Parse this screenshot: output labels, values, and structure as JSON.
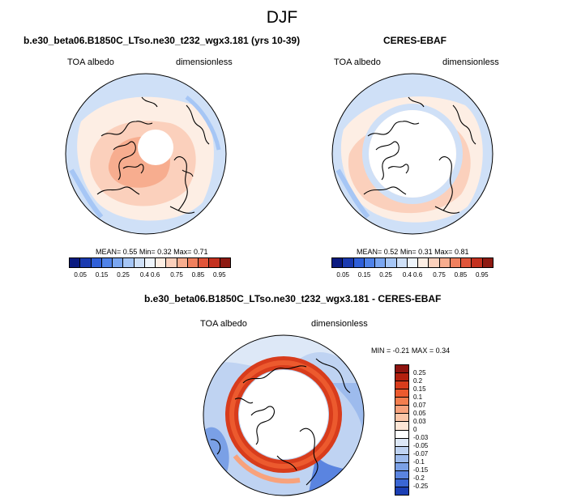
{
  "page_title": "DJF",
  "chart_data": [
    {
      "type": "heatmap",
      "projection": "north-polar-stereographic",
      "title": "b.e30_beta06.B1850C_LTso.ne30_t232_wgx3.181 (yrs 10-39)",
      "left_label": "TOA albedo",
      "right_label": "dimensionless",
      "stats": {
        "mean_label": "MEAN=",
        "mean": "0.55",
        "min_label": "Min=",
        "min": "0.32",
        "max_label": "Max=",
        "max": "0.71"
      },
      "colorbar": {
        "orientation": "horizontal",
        "tick_labels": [
          "0.05",
          "0.15",
          "0.25",
          "0.4",
          "0.6",
          "0.75",
          "0.85",
          "0.95"
        ],
        "colors": [
          "#0a1a80",
          "#1a3ab0",
          "#2f5fd8",
          "#4f82e8",
          "#7aa6f0",
          "#a6c6f5",
          "#cfe0f7",
          "#eef4fb",
          "#fdeee4",
          "#fbd0bc",
          "#f7ad8f",
          "#f0805e",
          "#e0553a",
          "#c4311f",
          "#8e1a12"
        ]
      }
    },
    {
      "type": "heatmap",
      "projection": "north-polar-stereographic",
      "title": "CERES-EBAF",
      "left_label": "TOA albedo",
      "right_label": "dimensionless",
      "stats": {
        "mean_label": "MEAN=",
        "mean": "0.52",
        "min_label": "Min=",
        "min": "0.31",
        "max_label": "Max=",
        "max": "0.81"
      },
      "colorbar": {
        "orientation": "horizontal",
        "tick_labels": [
          "0.05",
          "0.15",
          "0.25",
          "0.4",
          "0.6",
          "0.75",
          "0.85",
          "0.95"
        ],
        "colors": [
          "#0a1a80",
          "#1a3ab0",
          "#2f5fd8",
          "#4f82e8",
          "#7aa6f0",
          "#a6c6f5",
          "#cfe0f7",
          "#eef4fb",
          "#fdeee4",
          "#fbd0bc",
          "#f7ad8f",
          "#f0805e",
          "#e0553a",
          "#c4311f",
          "#8e1a12"
        ]
      }
    },
    {
      "type": "heatmap",
      "projection": "north-polar-stereographic",
      "title": "b.e30_beta06.B1850C_LTso.ne30_t232_wgx3.181 - CERES-EBAF",
      "left_label": "TOA albedo",
      "right_label": "dimensionless",
      "stats": {
        "min_label": "MIN =",
        "min": "-0.21",
        "max_label": "MAX =",
        "max": "0.34"
      },
      "colorbar": {
        "orientation": "vertical",
        "tick_labels": [
          "0.25",
          "0.2",
          "0.15",
          "0.1",
          "0.07",
          "0.05",
          "0.03",
          "0",
          "-0.03",
          "-0.05",
          "-0.07",
          "-0.1",
          "-0.15",
          "-0.2",
          "-0.25"
        ],
        "colors": [
          "#8e1410",
          "#b3200f",
          "#d83c1c",
          "#ec5a2e",
          "#f47e4e",
          "#f8a27c",
          "#fbc6a8",
          "#fde6d6",
          "#ffffff",
          "#dde8f7",
          "#bfd3f2",
          "#9dbbed",
          "#7aa0e6",
          "#5a84e0",
          "#3a66d4",
          "#1b3fb4"
        ]
      }
    }
  ]
}
